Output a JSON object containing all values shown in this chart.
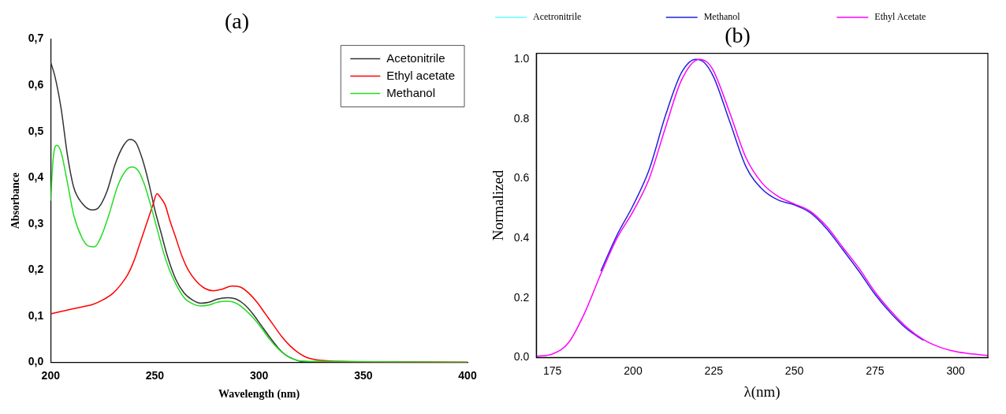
{
  "chart_data": [
    {
      "type": "line",
      "title": "(a)",
      "xlabel": "Wavelength (nm)",
      "ylabel": "Absorbance",
      "xlim": [
        200,
        400
      ],
      "xticks": [
        200,
        250,
        300,
        350,
        400
      ],
      "ylim": [
        0,
        0.7
      ],
      "yticks": [
        {
          "value": 0,
          "label": "0,0"
        },
        {
          "value": 0.1,
          "label": "0,1"
        },
        {
          "value": 0.2,
          "label": "0,2"
        },
        {
          "value": 0.3,
          "label": "0,3"
        },
        {
          "value": 0.4,
          "label": "0,4"
        },
        {
          "value": 0.5,
          "label": "0,5"
        },
        {
          "value": 0.6,
          "label": "0,6"
        },
        {
          "value": 0.7,
          "label": "0,7"
        }
      ],
      "legend": "top right",
      "grid": false,
      "series": [
        {
          "name": "Acetonitrile",
          "color": "#333333",
          "x": [
            200,
            202,
            205,
            208,
            211,
            215,
            220,
            223,
            227,
            231,
            235,
            238,
            241,
            244,
            247,
            250,
            253,
            256,
            260,
            264,
            268,
            272,
            276,
            280,
            285,
            289,
            293,
            297,
            301,
            305,
            309,
            313,
            317,
            320,
            325,
            350,
            400
          ],
          "values": [
            0.65,
            0.62,
            0.55,
            0.45,
            0.38,
            0.345,
            0.33,
            0.335,
            0.37,
            0.43,
            0.47,
            0.483,
            0.475,
            0.44,
            0.39,
            0.33,
            0.28,
            0.23,
            0.18,
            0.15,
            0.135,
            0.128,
            0.13,
            0.137,
            0.14,
            0.137,
            0.125,
            0.105,
            0.08,
            0.055,
            0.032,
            0.015,
            0.006,
            0.002,
            0.001,
            0,
            0
          ]
        },
        {
          "name": "Ethyl acetate",
          "color": "#ff0000",
          "x": [
            200,
            205,
            210,
            215,
            220,
            225,
            230,
            234,
            237,
            240,
            243,
            246,
            249,
            251,
            253,
            255,
            257,
            260,
            263,
            266,
            270,
            274,
            278,
            282,
            287,
            291,
            295,
            299,
            303,
            307,
            311,
            315,
            319,
            323,
            328,
            340,
            400
          ],
          "values": [
            0.105,
            0.11,
            0.115,
            0.12,
            0.125,
            0.135,
            0.15,
            0.17,
            0.19,
            0.22,
            0.26,
            0.3,
            0.34,
            0.365,
            0.355,
            0.34,
            0.31,
            0.27,
            0.23,
            0.2,
            0.175,
            0.16,
            0.155,
            0.158,
            0.165,
            0.163,
            0.15,
            0.13,
            0.105,
            0.08,
            0.055,
            0.035,
            0.02,
            0.01,
            0.005,
            0.002,
            0
          ]
        },
        {
          "name": "Methanol",
          "color": "#22dd22",
          "x": [
            200,
            201,
            202,
            203,
            205,
            208,
            211,
            215,
            218,
            221,
            224,
            228,
            232,
            236,
            239,
            242,
            245,
            248,
            251,
            254,
            257,
            260,
            264,
            268,
            272,
            276,
            280,
            285,
            289,
            293,
            297,
            301,
            305,
            309,
            313,
            317,
            320,
            330,
            400
          ],
          "values": [
            0.35,
            0.43,
            0.465,
            0.47,
            0.455,
            0.39,
            0.32,
            0.27,
            0.252,
            0.25,
            0.27,
            0.32,
            0.38,
            0.415,
            0.423,
            0.415,
            0.385,
            0.34,
            0.29,
            0.24,
            0.2,
            0.17,
            0.14,
            0.127,
            0.122,
            0.124,
            0.13,
            0.132,
            0.128,
            0.115,
            0.097,
            0.075,
            0.05,
            0.03,
            0.015,
            0.006,
            0.003,
            0.002,
            0
          ]
        }
      ]
    },
    {
      "type": "line",
      "title": "(b)",
      "xlabel": "λ(nm)",
      "ylabel": "Normalized",
      "xlim": [
        170,
        310
      ],
      "xticks": [
        175,
        200,
        225,
        250,
        275,
        300
      ],
      "ylim": [
        0,
        1.02
      ],
      "yticks": [
        {
          "value": 0,
          "label": "0.0"
        },
        {
          "value": 0.2,
          "label": "0.2"
        },
        {
          "value": 0.4,
          "label": "0.4"
        },
        {
          "value": 0.6,
          "label": "0.6"
        },
        {
          "value": 0.8,
          "label": "0.8"
        },
        {
          "value": 1,
          "label": "1.0"
        }
      ],
      "legend": "top",
      "grid": false,
      "series": [
        {
          "name": "Acetronitrile",
          "color": "#66ffff"
        },
        {
          "name": "Methanol",
          "color": "#2222dd",
          "x": [
            190,
            195,
            200,
            205,
            210,
            215,
            219.5,
            222,
            225,
            230,
            235,
            240,
            245,
            250,
            255,
            260,
            265,
            270,
            275,
            280,
            285,
            290
          ],
          "values": [
            0.29,
            0.41,
            0.51,
            0.63,
            0.81,
            0.955,
            1,
            0.99,
            0.94,
            0.79,
            0.64,
            0.565,
            0.528,
            0.512,
            0.485,
            0.432,
            0.362,
            0.29,
            0.212,
            0.148,
            0.095,
            0.058
          ]
        },
        {
          "name": "Ethyl Acetate",
          "color": "#ff00ff",
          "x": [
            170,
            175,
            180,
            185,
            190,
            195,
            200,
            205,
            210,
            215,
            220.5,
            223,
            225,
            230,
            235,
            240,
            245,
            250,
            255,
            260,
            265,
            270,
            275,
            280,
            285,
            290,
            295,
            300,
            305,
            310
          ],
          "values": [
            0.004,
            0.012,
            0.05,
            0.15,
            0.28,
            0.4,
            0.49,
            0.6,
            0.77,
            0.93,
            1,
            0.99,
            0.96,
            0.82,
            0.67,
            0.585,
            0.54,
            0.515,
            0.49,
            0.44,
            0.37,
            0.3,
            0.22,
            0.155,
            0.1,
            0.06,
            0.035,
            0.02,
            0.012,
            0.007
          ]
        }
      ]
    }
  ]
}
